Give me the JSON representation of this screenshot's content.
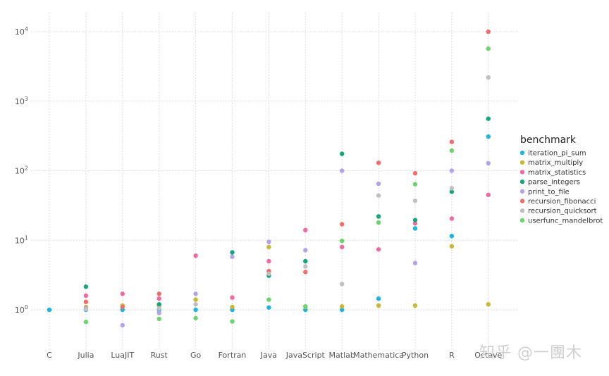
{
  "chart_data": {
    "type": "scatter",
    "title": "",
    "xlabel": "",
    "ylabel": "",
    "yscale": "log10",
    "ylim": [
      0.27,
      12000
    ],
    "y_ticks": [
      {
        "value": 1,
        "base": "10",
        "exp": "0"
      },
      {
        "value": 10,
        "base": "10",
        "exp": "1"
      },
      {
        "value": 100,
        "base": "10",
        "exp": "2"
      },
      {
        "value": 1000,
        "base": "10",
        "exp": "3"
      },
      {
        "value": 10000,
        "base": "10",
        "exp": "4"
      }
    ],
    "categories": [
      "C",
      "Julia",
      "LuaJIT",
      "Rust",
      "Go",
      "Fortran",
      "Java",
      "JavaScript",
      "Matlab",
      "Mathematica",
      "Python",
      "R",
      "Octave"
    ],
    "legend": {
      "title": "benchmark",
      "position": "right"
    },
    "series": [
      {
        "name": "iteration_pi_sum",
        "color": "#1db4e0",
        "values": [
          1.0,
          1.0,
          1.0,
          1.0,
          1.0,
          1.0,
          1.08,
          1.0,
          1.0,
          1.45,
          14.8,
          11.5,
          310
        ]
      },
      {
        "name": "matrix_multiply",
        "color": "#c9b838",
        "values": [
          null,
          1.1,
          1.15,
          1.15,
          1.4,
          1.1,
          8.0,
          1.1,
          1.12,
          1.15,
          1.15,
          8.2,
          1.2
        ]
      },
      {
        "name": "matrix_statistics",
        "color": "#ef6aa0",
        "values": [
          null,
          1.6,
          1.7,
          1.45,
          6.0,
          1.5,
          5.0,
          14.0,
          8.0,
          7.4,
          17.5,
          20.5,
          45
        ]
      },
      {
        "name": "parse_integers",
        "color": "#14a57a",
        "values": [
          null,
          2.15,
          null,
          1.2,
          null,
          6.7,
          3.1,
          5.0,
          175,
          22,
          19.5,
          50,
          560
        ]
      },
      {
        "name": "print_to_file",
        "color": "#b3a2e8",
        "values": [
          null,
          1.05,
          0.6,
          0.9,
          1.7,
          5.8,
          9.5,
          7.2,
          100,
          65,
          4.7,
          100,
          128
        ]
      },
      {
        "name": "recursion_fibonacci",
        "color": "#ef6e6a",
        "values": [
          null,
          1.3,
          1.1,
          1.7,
          null,
          null,
          3.6,
          3.5,
          17,
          130,
          92,
          260,
          10000
        ]
      },
      {
        "name": "recursion_quicksort",
        "color": "#c0c0c0",
        "values": [
          null,
          1.02,
          null,
          1.05,
          1.2,
          null,
          3.3,
          4.2,
          2.35,
          44,
          37,
          56,
          2200
        ]
      },
      {
        "name": "userfunc_mandelbrot",
        "color": "#6bd46b",
        "values": [
          null,
          0.67,
          null,
          0.74,
          0.76,
          0.68,
          1.4,
          1.12,
          9.8,
          18,
          64,
          195,
          5700
        ]
      }
    ]
  },
  "watermark": "知乎 @一團木"
}
